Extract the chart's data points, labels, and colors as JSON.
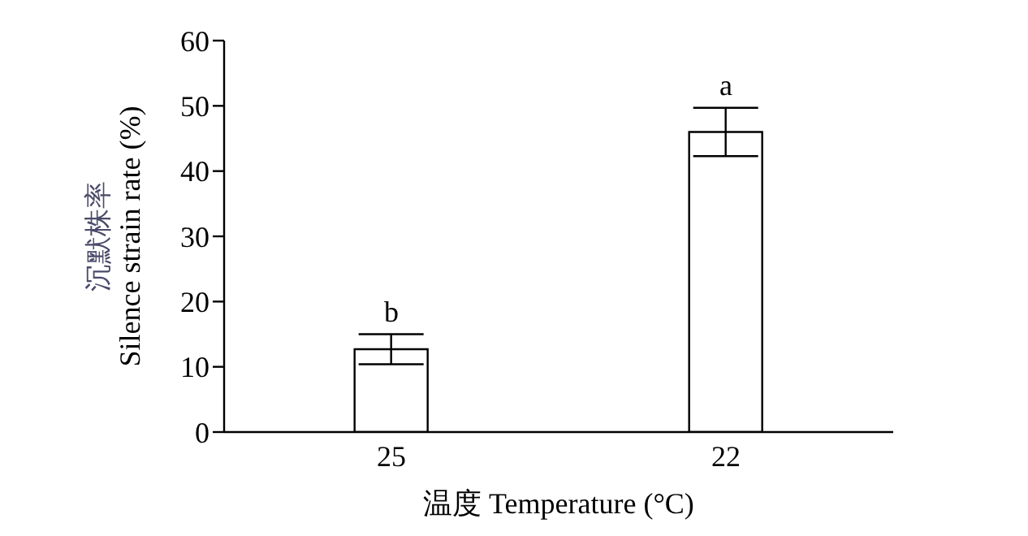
{
  "chart_data": {
    "type": "bar",
    "categories": [
      "25",
      "22"
    ],
    "values": [
      12.7,
      46.0
    ],
    "errors": [
      2.3,
      3.7
    ],
    "color": "#ffffff",
    "ylim": [
      0,
      60
    ],
    "yticks": [
      0,
      10,
      20,
      30,
      40,
      50,
      60
    ],
    "grid": false,
    "legend": false,
    "xlabel": "温度 Temperature (°C)",
    "ylabel": "沉默株率\nSilence strain rate (%)",
    "annotations": [
      {
        "text": "b",
        "x": "25",
        "y": 15.0
      },
      {
        "text": "a",
        "x": "22",
        "y": 49.7
      }
    ]
  }
}
